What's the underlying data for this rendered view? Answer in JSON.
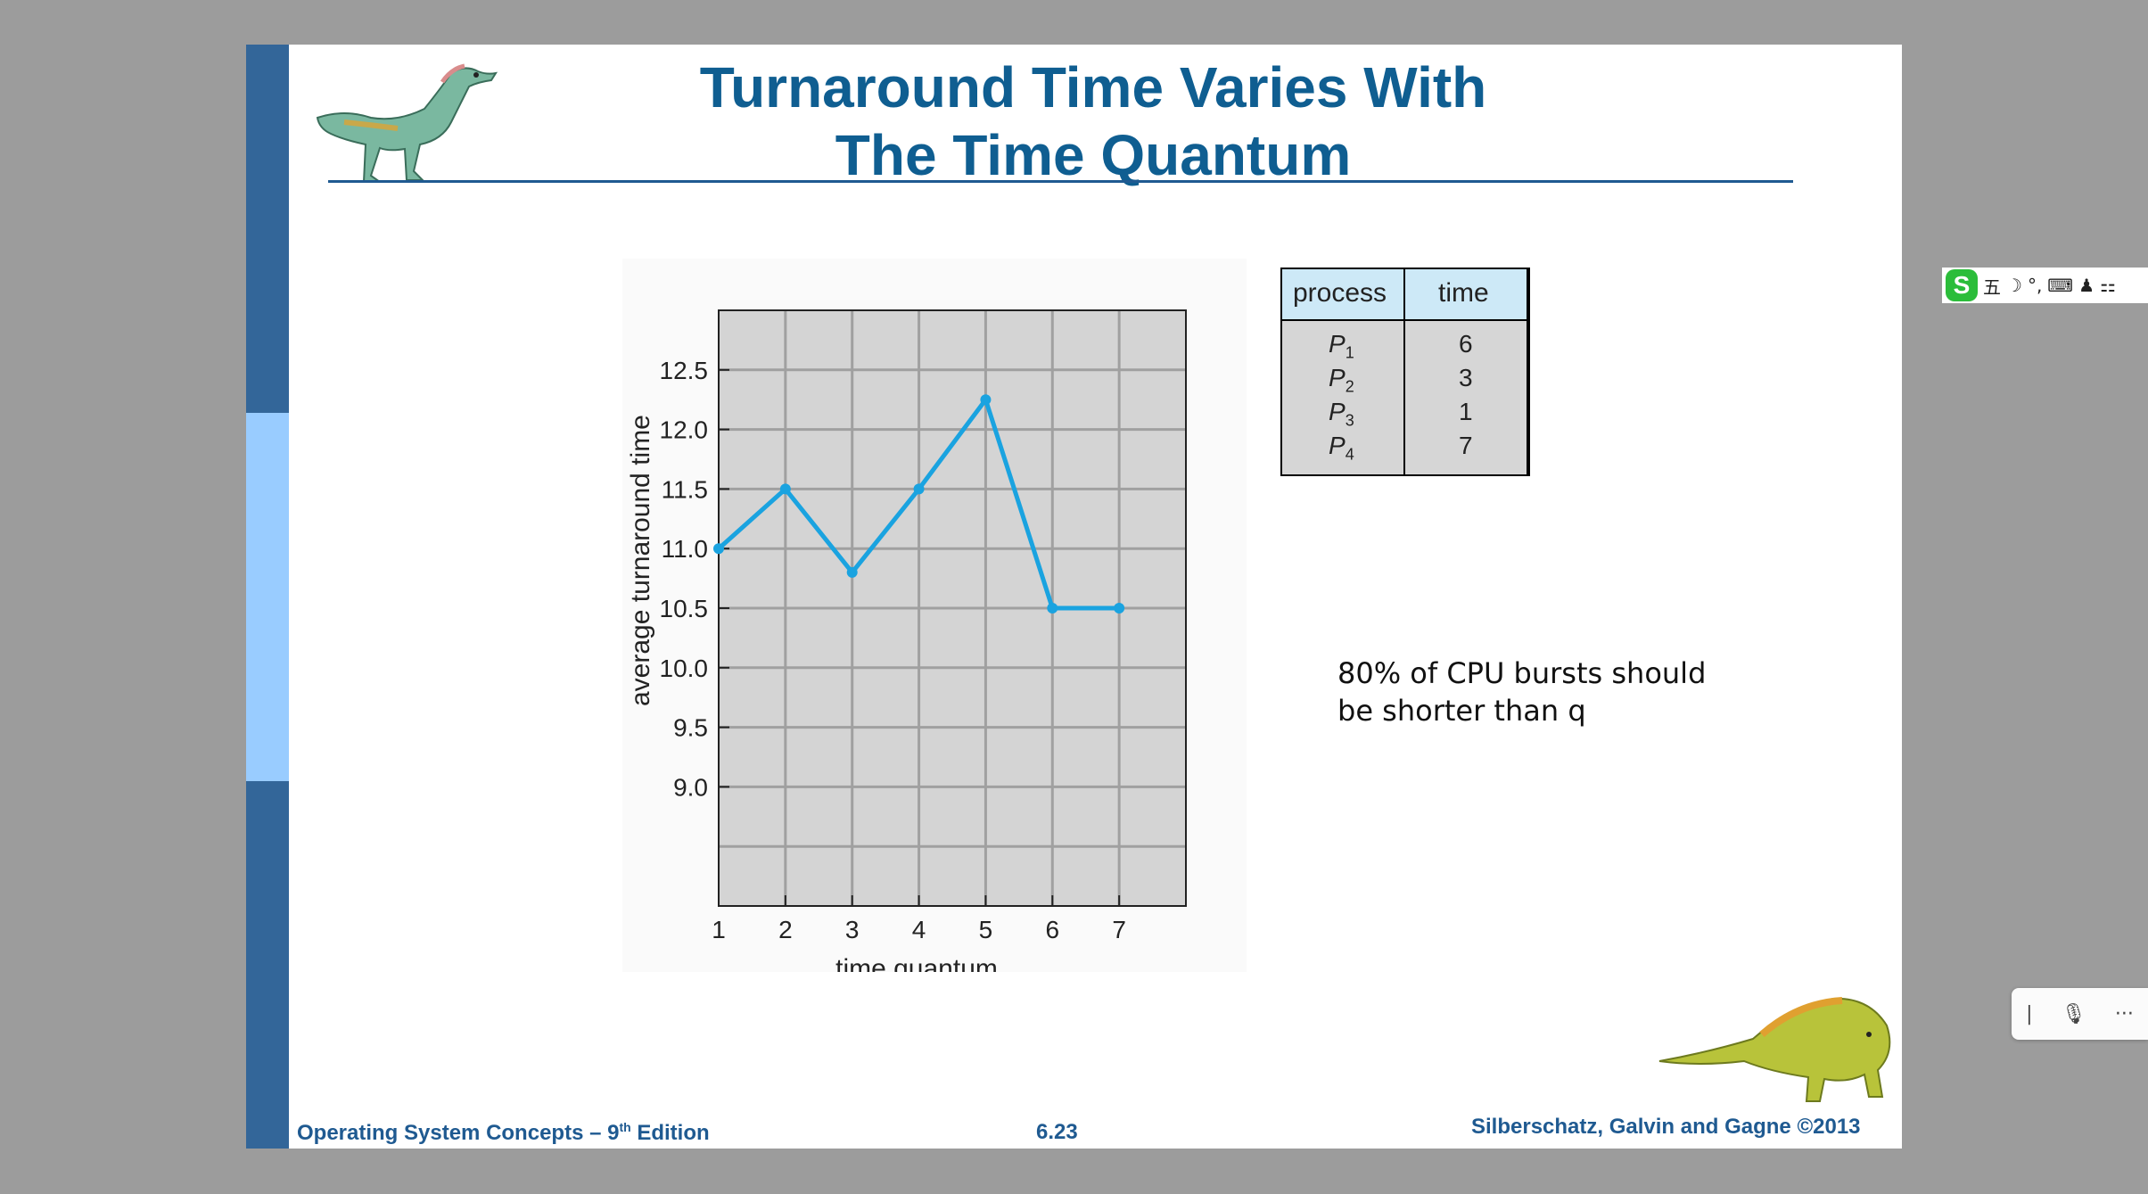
{
  "slide": {
    "title_line1": "Turnaround Time Varies With",
    "title_line2": "The Time Quantum",
    "note_line1": "80% of CPU bursts should",
    "note_line2": "be shorter than q",
    "footer_left_text": "Operating System Concepts – 9",
    "footer_left_sup": "th",
    "footer_left_suffix": " Edition",
    "footer_center": "6.23",
    "footer_right": "Silberschatz, Galvin and Gagne ©2013",
    "colors": {
      "accent": "#0f5e91",
      "sidebar_dark": "#336699",
      "sidebar_light": "#99ccff",
      "line": "#1aa3e0"
    }
  },
  "process_table": {
    "headers": [
      "process",
      "time"
    ],
    "rows": [
      {
        "name": "P",
        "sub": "1",
        "time": "6"
      },
      {
        "name": "P",
        "sub": "2",
        "time": "3"
      },
      {
        "name": "P",
        "sub": "3",
        "time": "1"
      },
      {
        "name": "P",
        "sub": "4",
        "time": "7"
      }
    ]
  },
  "chart_data": {
    "type": "line",
    "xlabel": "time quantum",
    "ylabel": "average turnaround time",
    "x": [
      1,
      2,
      3,
      4,
      5,
      6,
      7
    ],
    "series": [
      {
        "values": [
          11.0,
          11.5,
          10.8,
          11.5,
          12.25,
          10.5,
          10.5
        ]
      }
    ],
    "x_ticks": [
      "1",
      "2",
      "3",
      "4",
      "5",
      "6",
      "7"
    ],
    "y_ticks": [
      "9.0",
      "9.5",
      "10.0",
      "10.5",
      "11.0",
      "11.5",
      "12.0",
      "12.5"
    ],
    "ylim": [
      8.0,
      13.0
    ],
    "xlim": [
      1,
      8
    ],
    "grid": true
  },
  "overlay": {
    "ime_logo": "S",
    "ime_mode": "五",
    "ime_symbols": [
      "☽",
      "°,",
      "⌨",
      "♟",
      "⚏"
    ],
    "voice_bar": {
      "cursor": "|",
      "mic": "🎙",
      "more": "···"
    }
  }
}
